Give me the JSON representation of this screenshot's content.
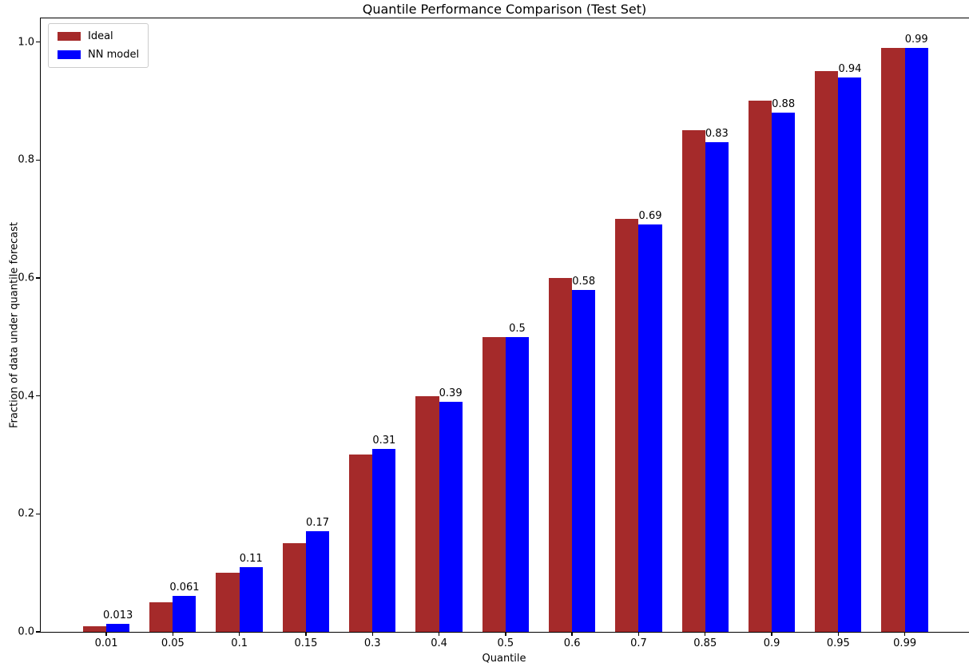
{
  "chart_data": {
    "type": "bar",
    "title": "Quantile Performance Comparison (Test Set)",
    "xlabel": "Quantile",
    "ylabel": "Fraction of data under quantile forecast",
    "categories": [
      "0.01",
      "0.05",
      "0.1",
      "0.15",
      "0.3",
      "0.4",
      "0.5",
      "0.6",
      "0.7",
      "0.85",
      "0.9",
      "0.95",
      "0.99"
    ],
    "series": [
      {
        "name": "Ideal",
        "color": "#a52a2a",
        "values": [
          0.01,
          0.05,
          0.1,
          0.15,
          0.3,
          0.4,
          0.5,
          0.6,
          0.7,
          0.85,
          0.9,
          0.95,
          0.99
        ]
      },
      {
        "name": "NN model",
        "color": "#0000ff",
        "values": [
          0.013,
          0.061,
          0.11,
          0.17,
          0.31,
          0.39,
          0.5,
          0.58,
          0.69,
          0.83,
          0.88,
          0.94,
          0.99
        ],
        "bar_labels": [
          "0.013",
          "0.061",
          "0.11",
          "0.17",
          "0.31",
          "0.39",
          "0.5",
          "0.58",
          "0.69",
          "0.83",
          "0.88",
          "0.94",
          "0.99"
        ]
      }
    ],
    "ylim": [
      0,
      1.04
    ],
    "y_ticks": [
      {
        "value": 0.0,
        "label": "0.0"
      },
      {
        "value": 0.2,
        "label": "0.2"
      },
      {
        "value": 0.4,
        "label": "0.4"
      },
      {
        "value": 0.6,
        "label": "0.6"
      },
      {
        "value": 0.8,
        "label": "0.8"
      },
      {
        "value": 1.0,
        "label": "1.0"
      }
    ],
    "grid": false,
    "legend_position": "upper-left",
    "bar_label_series": "NN model"
  }
}
